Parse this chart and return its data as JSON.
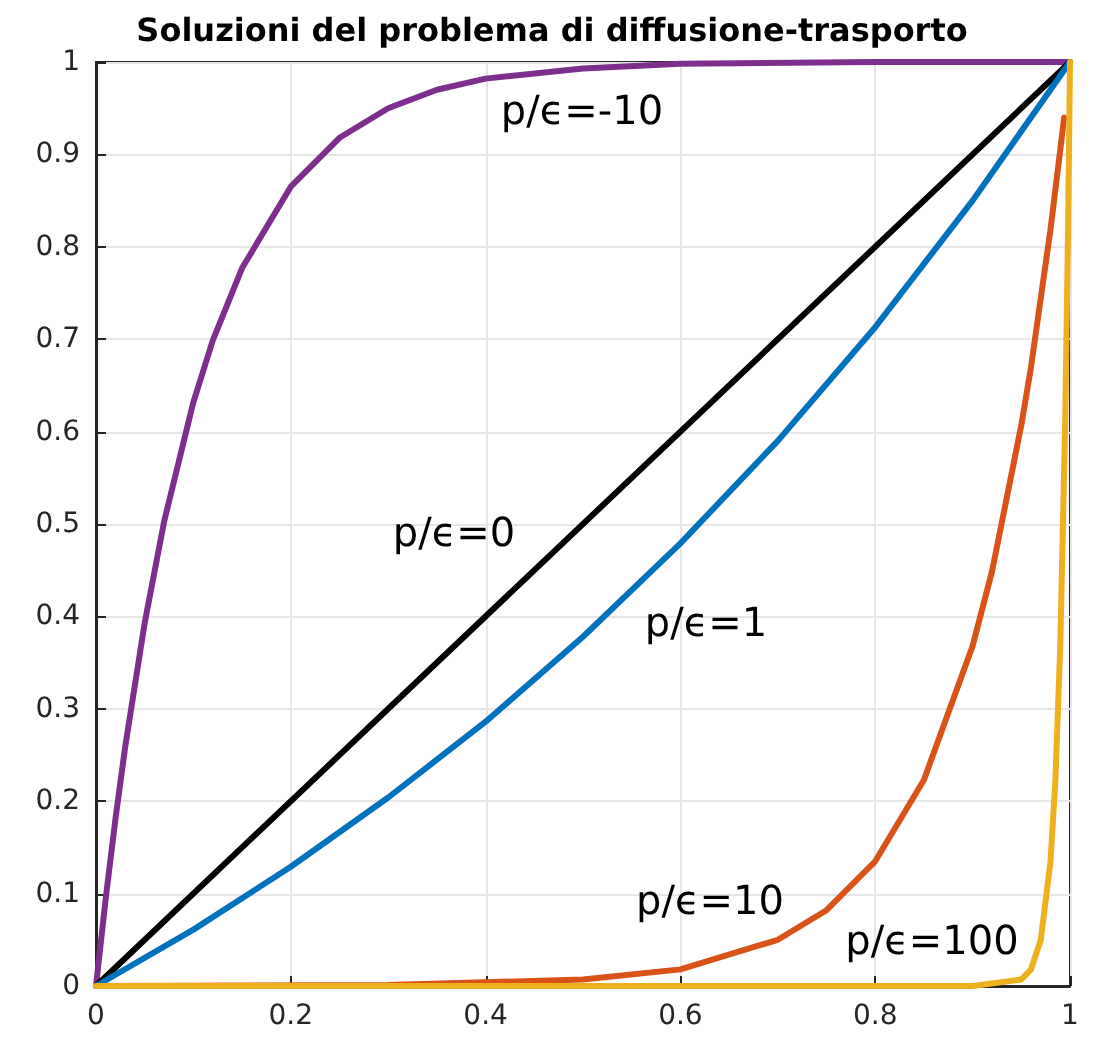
{
  "chart_data": {
    "type": "line",
    "title": "Soluzioni del problema di diffusione-trasporto",
    "marker": "none",
    "line_style": "solid",
    "grid": true,
    "xlim": [
      0,
      1
    ],
    "xticks": [
      0,
      0.2,
      0.4,
      0.6,
      0.8,
      1
    ],
    "ylim": [
      0,
      1
    ],
    "yticks": [
      0,
      0.1,
      0.2,
      0.3,
      0.4,
      0.5,
      0.6,
      0.7,
      0.8,
      0.9,
      1
    ],
    "series": [
      {
        "color": "#7e2f8e",
        "x": [
          0,
          0.01,
          0.02,
          0.03,
          0.05,
          0.07,
          0.1,
          0.12,
          0.15,
          0.2,
          0.25,
          0.3,
          0.35,
          0.4,
          0.5,
          0.6,
          0.8,
          1
        ],
        "values": [
          0,
          0.095,
          0.181,
          0.259,
          0.393,
          0.503,
          0.632,
          0.699,
          0.777,
          0.865,
          0.918,
          0.95,
          0.97,
          0.982,
          0.993,
          0.998,
          1,
          1
        ]
      },
      {
        "color": "#000000",
        "x": [
          0,
          1
        ],
        "values": [
          0,
          1
        ]
      },
      {
        "color": "#0072bd",
        "x": [
          0,
          0.1,
          0.2,
          0.3,
          0.4,
          0.5,
          0.6,
          0.7,
          0.8,
          0.9,
          1
        ],
        "values": [
          0,
          0.061,
          0.129,
          0.204,
          0.286,
          0.378,
          0.479,
          0.59,
          0.713,
          0.85,
          1
        ]
      },
      {
        "color": "#d95319",
        "x": [
          0,
          0.3,
          0.5,
          0.6,
          0.7,
          0.75,
          0.8,
          0.85,
          0.9,
          0.92,
          0.95,
          0.96,
          0.98,
          0.99,
          0.994
        ],
        "values": [
          0,
          0.001,
          0.007,
          0.018,
          0.05,
          0.082,
          0.135,
          0.223,
          0.368,
          0.449,
          0.607,
          0.67,
          0.819,
          0.905,
          0.94
        ]
      },
      {
        "color": "#edb120",
        "x": [
          0,
          0.9,
          0.95,
          0.96,
          0.97,
          0.98,
          0.985,
          0.99,
          0.995,
          0.998,
          1
        ],
        "values": [
          0,
          0,
          0.007,
          0.018,
          0.05,
          0.135,
          0.223,
          0.368,
          0.607,
          0.819,
          1
        ]
      }
    ],
    "annotations": [
      "p/ϵ=-10",
      "p/ϵ=0",
      "p/ϵ=1",
      "p/ϵ=10",
      "p/ϵ=100"
    ]
  }
}
